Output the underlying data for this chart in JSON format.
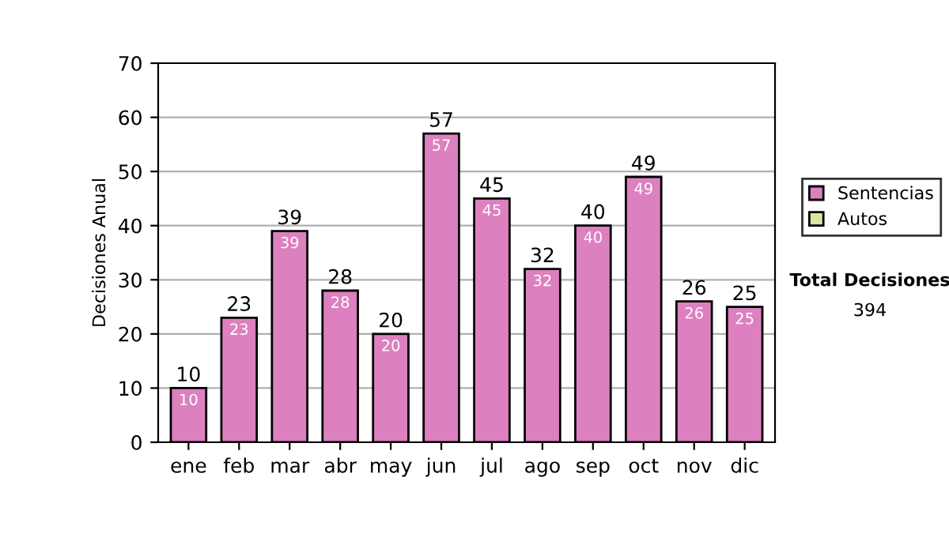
{
  "chart_data": {
    "type": "bar",
    "stacked": true,
    "ylabel": "Decisiones Anual",
    "categories": [
      "ene",
      "feb",
      "mar",
      "abr",
      "may",
      "jun",
      "jul",
      "ago",
      "sep",
      "oct",
      "nov",
      "dic"
    ],
    "series": [
      {
        "name": "Sentencias",
        "color": "#dd80c0",
        "values": [
          10,
          23,
          39,
          28,
          20,
          57,
          45,
          32,
          40,
          49,
          26,
          25
        ]
      },
      {
        "name": "Autos",
        "color": "#d4e8a0",
        "values": [
          null,
          null,
          null,
          null,
          null,
          null,
          null,
          null,
          null,
          null,
          null,
          null
        ]
      }
    ],
    "data_labels": true,
    "totals": [
      "10",
      "23",
      "39",
      "28",
      "20",
      "57",
      "45",
      "32",
      "40",
      "49",
      "26",
      "25"
    ],
    "ylim": [
      0,
      70
    ],
    "yticks": [
      0,
      10,
      20,
      30,
      40,
      50,
      60,
      70
    ],
    "grid": "y",
    "legend": "right",
    "annotations": [
      "Total Decisiones",
      "394"
    ]
  }
}
